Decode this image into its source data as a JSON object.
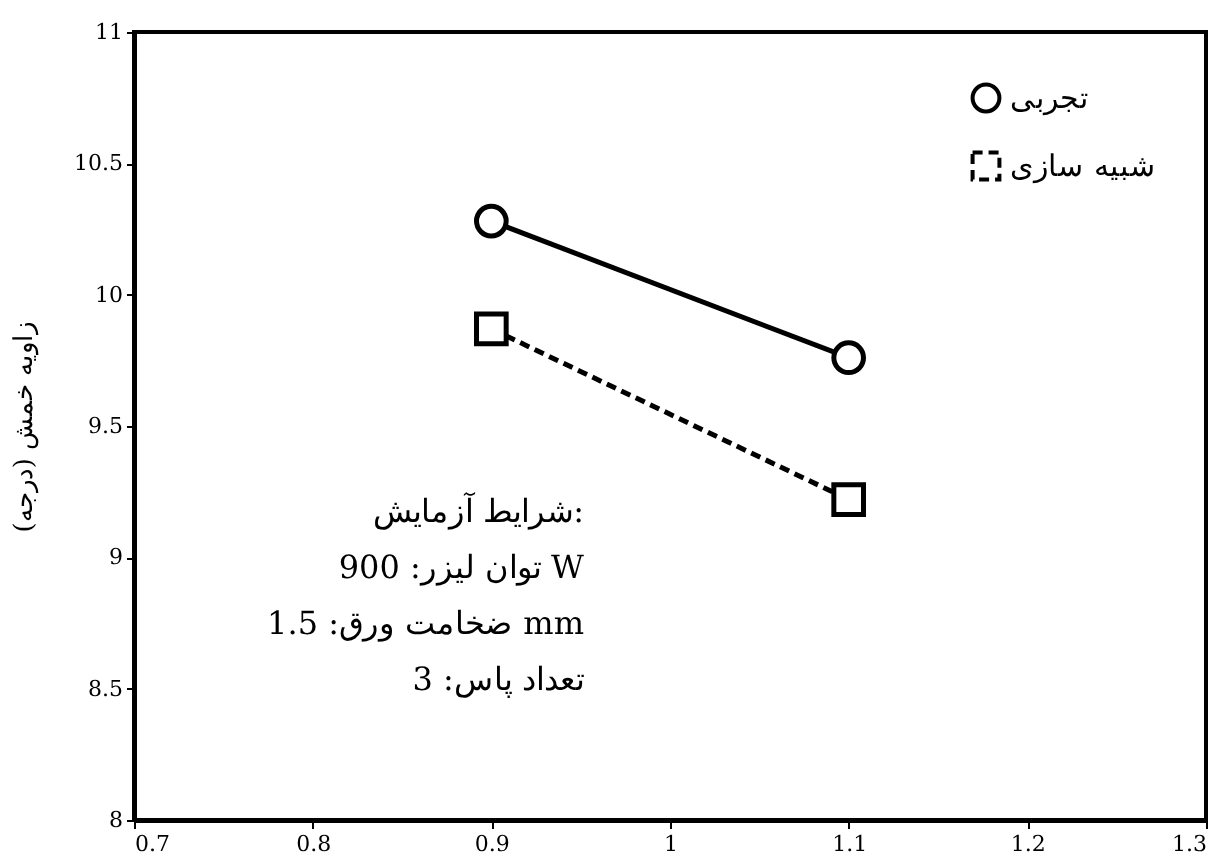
{
  "chart_data": {
    "type": "line",
    "ylabel": "زاویه خمش (درجه)",
    "x": [
      0.9,
      1.1
    ],
    "series": [
      {
        "name": "تجربی",
        "color": "#000000",
        "values": [
          10.28,
          9.76
        ],
        "marker": "circle",
        "line_style": "solid"
      },
      {
        "name": "شبیه سازی",
        "color": "#000000",
        "values": [
          9.87,
          9.22
        ],
        "marker": "square",
        "line_style": "dashed"
      }
    ],
    "xlim": [
      0.7,
      1.3
    ],
    "xticks": [
      0.7,
      0.8,
      0.9,
      1,
      1.1,
      1.2,
      1.3
    ],
    "ylim": [
      8,
      11
    ],
    "yticks": [
      8,
      8.5,
      9,
      9.5,
      10,
      10.5,
      11
    ],
    "grid": false,
    "legend": "top right",
    "annotations": [
      "شرایط آزمایش:",
      "توان لیزر: 900 W",
      "ضخامت ورق: 1.5 mm",
      "تعداد پاس: 3"
    ]
  }
}
